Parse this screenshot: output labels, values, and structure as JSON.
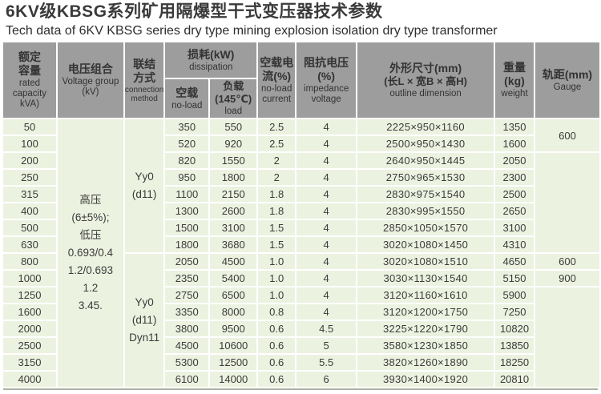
{
  "title": "6KV级KBSG系列矿用隔爆型干式变压器技术参数",
  "subtitle": "Tech data of 6KV KBSG series dry type mining explosion isolation dry type transformer",
  "table": {
    "headers": {
      "capacity": {
        "zh": "额定容量",
        "en": "rated capacity kVA)"
      },
      "voltage": {
        "zh": "电压组合",
        "en": "Voltage group (kV)"
      },
      "connection": {
        "zh": "联结方式",
        "en": "connection method"
      },
      "dissipation": {
        "zh": "损耗(kW)",
        "en": "dissipation"
      },
      "no_load": {
        "zh": "空载",
        "en": "no-load"
      },
      "load": {
        "zh": "负载(145℃)",
        "en": "load"
      },
      "no_load_current": {
        "zh": "空载电流(%)",
        "en": "no-load current"
      },
      "impedance": {
        "zh": "阻抗电压(%)",
        "en": "impedance voltage"
      },
      "dimension": {
        "zh": "外形尺寸(mm)",
        "zh2": "(长L × 宽B × 高H)",
        "en": "outline dimension"
      },
      "weight": {
        "zh": "重量(kg)",
        "en": "weight"
      },
      "gauge": {
        "zh": "轨距(mm)",
        "en": "Gauge"
      }
    },
    "voltage_group": {
      "lines": [
        "高压",
        "(6±5%);",
        "低压",
        "0.693/0.4",
        "1.2/0.693",
        "1.2",
        "3.45."
      ]
    },
    "connection": {
      "blocks": [
        {
          "row": 0,
          "span": 8,
          "lines": [
            "Yy0",
            "(d11)"
          ]
        },
        {
          "row": 8,
          "span": 8,
          "lines": [
            "Yy0",
            "(d11)",
            "Dyn11"
          ]
        }
      ]
    },
    "gauge": {
      "blocks": [
        {
          "row": 0,
          "span": 2,
          "value": "600"
        },
        {
          "row": 2,
          "span": 6,
          "value": ""
        },
        {
          "row": 8,
          "span": 1,
          "value": "600"
        },
        {
          "row": 9,
          "span": 1,
          "value": "900"
        },
        {
          "row": 10,
          "span": 6,
          "value": ""
        }
      ]
    },
    "rows": [
      {
        "capacity": "50",
        "no_load_loss": "350",
        "load_loss": "550",
        "no_load_current": "2.5",
        "impedance": "4",
        "dimension": "2225×950×1160",
        "weight": "1350"
      },
      {
        "capacity": "100",
        "no_load_loss": "520",
        "load_loss": "920",
        "no_load_current": "2.5",
        "impedance": "4",
        "dimension": "2500×950×1430",
        "weight": "1600"
      },
      {
        "capacity": "200",
        "no_load_loss": "820",
        "load_loss": "1550",
        "no_load_current": "2",
        "impedance": "4",
        "dimension": "2640×950×1445",
        "weight": "2050"
      },
      {
        "capacity": "250",
        "no_load_loss": "950",
        "load_loss": "1800",
        "no_load_current": "2",
        "impedance": "4",
        "dimension": "2750×965×1530",
        "weight": "2300"
      },
      {
        "capacity": "315",
        "no_load_loss": "1100",
        "load_loss": "2150",
        "no_load_current": "1.8",
        "impedance": "4",
        "dimension": "2830×975×1540",
        "weight": "2500"
      },
      {
        "capacity": "400",
        "no_load_loss": "1300",
        "load_loss": "2600",
        "no_load_current": "1.8",
        "impedance": "4",
        "dimension": "2830×995×1550",
        "weight": "2650"
      },
      {
        "capacity": "500",
        "no_load_loss": "1500",
        "load_loss": "3100",
        "no_load_current": "1.5",
        "impedance": "4",
        "dimension": "2850×1050×1570",
        "weight": "3100"
      },
      {
        "capacity": "630",
        "no_load_loss": "1800",
        "load_loss": "3680",
        "no_load_current": "1.5",
        "impedance": "4",
        "dimension": "3020×1080×1450",
        "weight": "4310"
      },
      {
        "capacity": "800",
        "no_load_loss": "2050",
        "load_loss": "4500",
        "no_load_current": "1.0",
        "impedance": "4",
        "dimension": "3020×1080×1510",
        "weight": "4650"
      },
      {
        "capacity": "1000",
        "no_load_loss": "2350",
        "load_loss": "5400",
        "no_load_current": "1.0",
        "impedance": "4",
        "dimension": "3030×1130×1540",
        "weight": "5150"
      },
      {
        "capacity": "1250",
        "no_load_loss": "2750",
        "load_loss": "6500",
        "no_load_current": "1.0",
        "impedance": "4",
        "dimension": "3120×1160×1610",
        "weight": "5900"
      },
      {
        "capacity": "1600",
        "no_load_loss": "3350",
        "load_loss": "8000",
        "no_load_current": "0.8",
        "impedance": "4",
        "dimension": "3120×1200×1750",
        "weight": "7250"
      },
      {
        "capacity": "2000",
        "no_load_loss": "3800",
        "load_loss": "9500",
        "no_load_current": "0.6",
        "impedance": "4.5",
        "dimension": "3225×1220×1790",
        "weight": "10820"
      },
      {
        "capacity": "2500",
        "no_load_loss": "4500",
        "load_loss": "10600",
        "no_load_current": "0.6",
        "impedance": "5",
        "dimension": "3580×1230×1850",
        "weight": "13850"
      },
      {
        "capacity": "3150",
        "no_load_loss": "5300",
        "load_loss": "12500",
        "no_load_current": "0.6",
        "impedance": "5.5",
        "dimension": "3820×1260×1890",
        "weight": "18250"
      },
      {
        "capacity": "4000",
        "no_load_loss": "6100",
        "load_loss": "14000",
        "no_load_current": "0.6",
        "impedance": "6",
        "dimension": "3930×1400×1920",
        "weight": "20810"
      }
    ]
  },
  "colors": {
    "header_bg": "#9d9d9d",
    "row_bg": "#ecf2e0",
    "text": "#3a3a3a",
    "divider": "#ffffff"
  }
}
